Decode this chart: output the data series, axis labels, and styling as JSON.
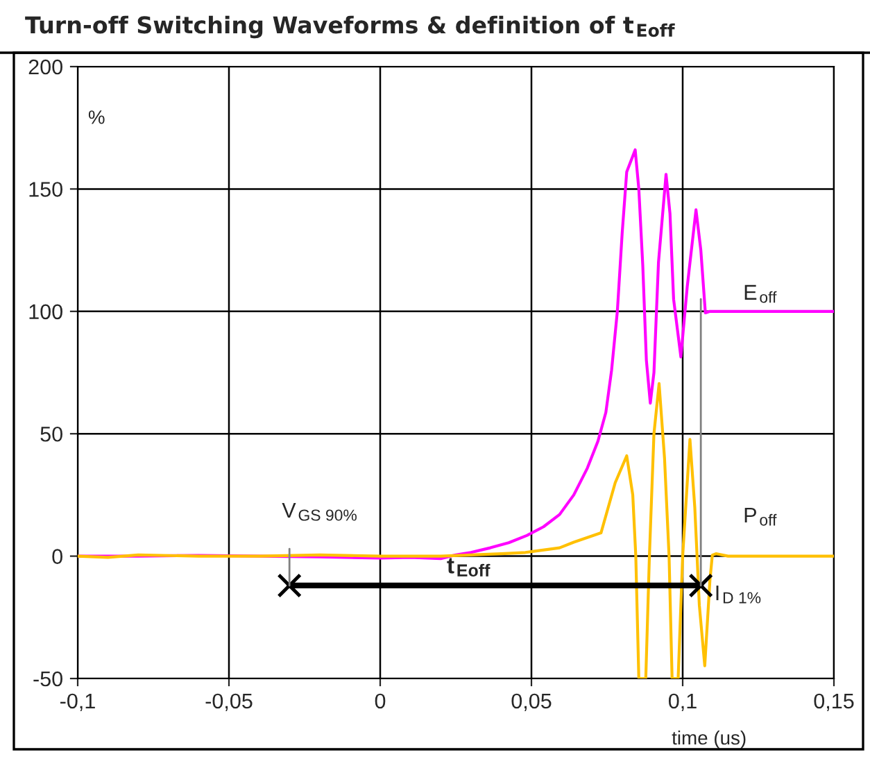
{
  "chart_data": {
    "type": "line",
    "title": "Turn-off Switching Waveforms & definition of t$_{Eoff}$",
    "xlabel": "time (us)",
    "ylabel": "%",
    "xlim": [
      -0.1,
      0.15
    ],
    "ylim": [
      -50,
      200
    ],
    "xticks": [
      {
        "value": -0.1,
        "label": "-0,1"
      },
      {
        "value": -0.05,
        "label": "-0,05"
      },
      {
        "value": 0,
        "label": "0"
      },
      {
        "value": 0.05,
        "label": "0,05"
      },
      {
        "value": 0.1,
        "label": "0,1"
      },
      {
        "value": 0.15,
        "label": "0,15"
      }
    ],
    "yticks": [
      -50,
      0,
      50,
      100,
      150,
      200
    ],
    "grid": true,
    "legend": false,
    "series": [
      {
        "color": "#ff00ff",
        "x": [
          -0.1,
          -0.08,
          -0.06,
          -0.04,
          -0.02,
          0,
          0.01,
          0.02,
          0.025,
          0.03,
          0.0364,
          0.0425,
          0.0486,
          0.054,
          0.0593,
          0.064,
          0.0685,
          0.072,
          0.0746,
          0.0765,
          0.0784,
          0.08,
          0.0815,
          0.0843,
          0.0855,
          0.0868,
          0.088,
          0.0893,
          0.0905,
          0.092,
          0.0945,
          0.0958,
          0.097,
          0.0994,
          0.1015,
          0.1044,
          0.106,
          0.1075,
          0.109,
          0.15
        ],
        "values": [
          0,
          0,
          0.3,
          0,
          -0.3,
          -0.8,
          -0.5,
          -1,
          0.5,
          1.5,
          3.4,
          5.5,
          8.5,
          12,
          17,
          25,
          36,
          47,
          58.7,
          76,
          100,
          132,
          157,
          166,
          150,
          119,
          80,
          62.5,
          75,
          120,
          156,
          140,
          105,
          81.4,
          110,
          141.5,
          125,
          99.4,
          100,
          100
        ]
      },
      {
        "color": "#ffc000",
        "x": [
          -0.1,
          -0.09,
          -0.08,
          -0.06,
          -0.04,
          -0.02,
          0,
          0.02,
          0.03,
          0.04,
          0.048,
          0.0593,
          0.064,
          0.073,
          0.0777,
          0.0815,
          0.0835,
          0.0845,
          0.0855,
          0.0878,
          0.089,
          0.0905,
          0.0922,
          0.094,
          0.0955,
          0.0965,
          0.0985,
          0.1,
          0.1024,
          0.104,
          0.1055,
          0.1073,
          0.109,
          0.1098,
          0.111,
          0.115,
          0.15
        ],
        "values": [
          0,
          -0.5,
          0.5,
          0,
          0,
          0.5,
          0,
          0,
          0.5,
          1,
          1.5,
          3.4,
          5.7,
          9.5,
          30,
          41,
          25,
          0,
          -50,
          -50,
          0,
          50,
          70.5,
          40,
          0,
          -50,
          -50,
          0,
          47.7,
          20,
          -20,
          -44.8,
          -10,
          0.4,
          1,
          0,
          0
        ]
      },
      {
        "color": "#000000",
        "marker": "cross",
        "x": [
          -0.03,
          0.106
        ],
        "values": [
          -12,
          -12
        ]
      },
      {
        "color": "#808080",
        "x": [
          -0.03,
          -0.03
        ],
        "values": [
          -12,
          3
        ]
      },
      {
        "color": "#808080",
        "x": [
          0.106,
          0.106
        ],
        "values": [
          -12,
          105
        ]
      }
    ],
    "annotations": [
      {
        "text": "E$_{off}$",
        "x": 0.12,
        "y": 103
      },
      "P$_{off}$",
      "t$_{Eoff}$",
      "V$_{GS 90%}$",
      {
        "text": "I$_{D 1%}$",
        "x": 0.1105,
        "y": -18
      }
    ]
  }
}
